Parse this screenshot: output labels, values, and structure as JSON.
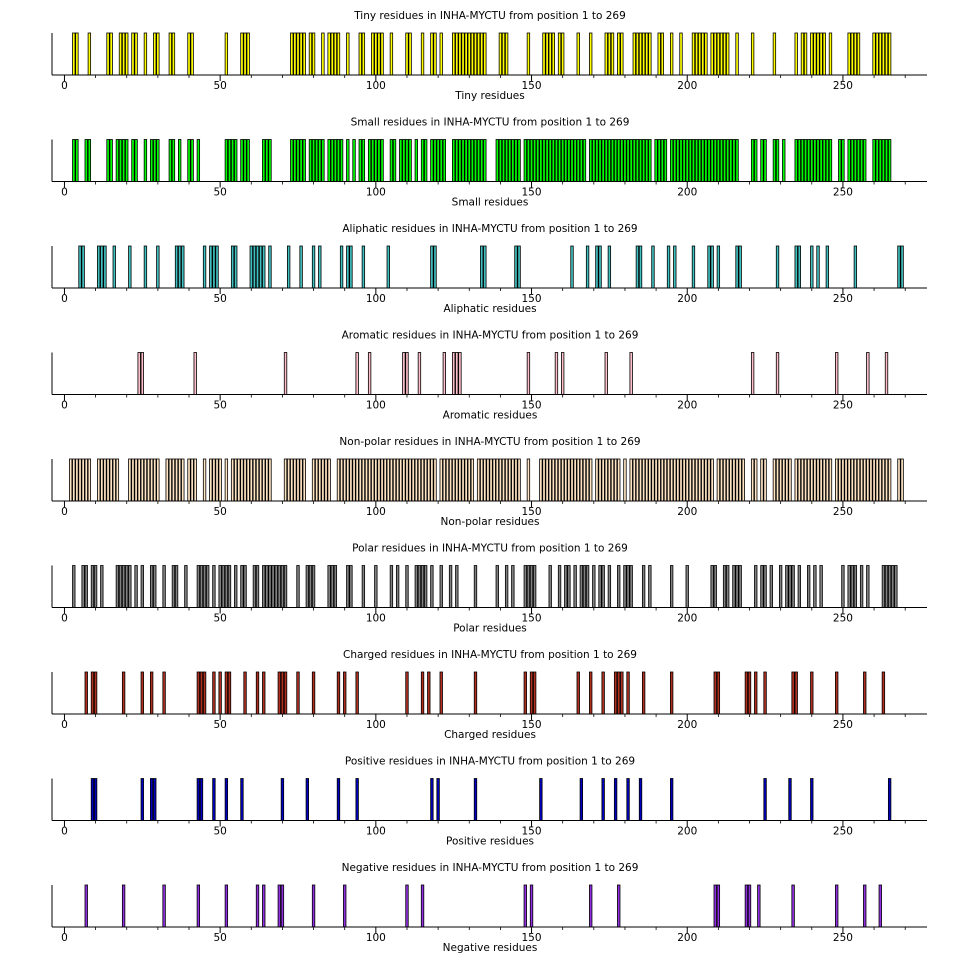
{
  "figure": {
    "background": "#ffffff",
    "axis_color": "#000000"
  },
  "chart_data": [
    {
      "type": "bar",
      "title": "Tiny residues in INHA-MYCTU from position 1 to 269",
      "xlabel": "Tiny residues",
      "color": "#ffff00",
      "xlim": [
        -4,
        277
      ],
      "xticks": [
        0,
        50,
        100,
        150,
        200,
        250
      ],
      "positions": [
        3,
        4,
        8,
        14,
        15,
        18,
        19,
        20,
        22,
        23,
        26,
        29,
        30,
        34,
        35,
        40,
        41,
        52,
        57,
        58,
        59,
        73,
        74,
        75,
        76,
        77,
        79,
        80,
        83,
        85,
        86,
        87,
        88,
        91,
        95,
        96,
        99,
        100,
        101,
        102,
        105,
        110,
        111,
        115,
        118,
        119,
        121,
        125,
        126,
        127,
        128,
        129,
        130,
        131,
        132,
        133,
        134,
        135,
        140,
        141,
        142,
        149,
        154,
        155,
        156,
        157,
        159,
        160,
        165,
        169,
        174,
        175,
        176,
        178,
        179,
        183,
        184,
        185,
        186,
        187,
        188,
        191,
        192,
        195,
        198,
        202,
        203,
        204,
        205,
        206,
        208,
        209,
        210,
        211,
        212,
        213,
        216,
        221,
        228,
        235,
        237,
        238,
        240,
        241,
        242,
        243,
        244,
        246,
        252,
        253,
        254,
        255,
        260,
        261,
        262,
        263,
        264,
        265
      ]
    },
    {
      "type": "bar",
      "title": "Small residues in INHA-MYCTU from position 1 to 269",
      "xlabel": "Small residues",
      "color": "#00ff00",
      "xlim": [
        -4,
        277
      ],
      "xticks": [
        0,
        50,
        100,
        150,
        200,
        250
      ],
      "positions": [
        3,
        4,
        7,
        8,
        14,
        15,
        17,
        18,
        19,
        20,
        22,
        23,
        26,
        28,
        29,
        30,
        34,
        35,
        37,
        40,
        41,
        43,
        52,
        53,
        54,
        55,
        57,
        58,
        59,
        64,
        65,
        66,
        73,
        74,
        75,
        76,
        77,
        79,
        80,
        81,
        82,
        83,
        85,
        86,
        87,
        88,
        89,
        91,
        93,
        95,
        96,
        98,
        99,
        100,
        101,
        102,
        105,
        106,
        108,
        109,
        110,
        111,
        113,
        115,
        116,
        118,
        119,
        120,
        121,
        122,
        125,
        126,
        127,
        128,
        129,
        130,
        131,
        132,
        133,
        134,
        135,
        139,
        140,
        141,
        142,
        143,
        144,
        145,
        146,
        148,
        149,
        150,
        151,
        152,
        153,
        154,
        155,
        156,
        157,
        158,
        159,
        160,
        161,
        162,
        163,
        164,
        165,
        166,
        167,
        169,
        170,
        171,
        172,
        173,
        174,
        175,
        176,
        177,
        178,
        179,
        180,
        181,
        182,
        183,
        184,
        185,
        186,
        187,
        188,
        190,
        191,
        192,
        193,
        195,
        196,
        197,
        198,
        199,
        200,
        201,
        202,
        203,
        204,
        205,
        206,
        207,
        208,
        209,
        210,
        211,
        212,
        213,
        214,
        215,
        216,
        221,
        222,
        224,
        225,
        228,
        229,
        231,
        235,
        236,
        237,
        238,
        239,
        240,
        241,
        242,
        243,
        244,
        245,
        246,
        249,
        250,
        252,
        253,
        254,
        255,
        256,
        257,
        260,
        261,
        262,
        263,
        264,
        265
      ]
    },
    {
      "type": "bar",
      "title": "Aliphatic residues in INHA-MYCTU from position 1 to 269",
      "xlabel": "Aliphatic residues",
      "color": "#40c0c0",
      "xlim": [
        -4,
        277
      ],
      "xticks": [
        0,
        50,
        100,
        150,
        200,
        250
      ],
      "positions": [
        5,
        6,
        11,
        12,
        13,
        16,
        21,
        26,
        30,
        36,
        37,
        38,
        45,
        47,
        48,
        49,
        54,
        55,
        60,
        61,
        62,
        63,
        64,
        66,
        72,
        76,
        80,
        82,
        89,
        91,
        92,
        96,
        104,
        118,
        119,
        134,
        135,
        145,
        146,
        163,
        168,
        171,
        172,
        175,
        184,
        185,
        189,
        194,
        196,
        202,
        207,
        208,
        210,
        216,
        217,
        229,
        235,
        236,
        240,
        242,
        245,
        254,
        268,
        269
      ]
    },
    {
      "type": "bar",
      "title": "Aromatic residues in INHA-MYCTU from position 1 to 269",
      "xlabel": "Aromatic residues",
      "color": "#ffc0cb",
      "xlim": [
        -4,
        277
      ],
      "xticks": [
        0,
        50,
        100,
        150,
        200,
        250
      ],
      "positions": [
        24,
        25,
        42,
        71,
        94,
        98,
        109,
        110,
        114,
        122,
        125,
        126,
        127,
        149,
        158,
        160,
        174,
        182,
        221,
        229,
        248,
        258,
        264
      ]
    },
    {
      "type": "bar",
      "title": "Non-polar residues in INHA-MYCTU from position 1 to 269",
      "xlabel": "Non-polar residues",
      "color": "#ffe4c4",
      "xlim": [
        -4,
        277
      ],
      "xticks": [
        0,
        50,
        100,
        150,
        200,
        250
      ],
      "positions": [
        2,
        3,
        4,
        5,
        6,
        7,
        8,
        11,
        12,
        13,
        14,
        15,
        16,
        17,
        21,
        22,
        23,
        24,
        25,
        26,
        27,
        28,
        29,
        30,
        33,
        34,
        35,
        36,
        37,
        38,
        40,
        41,
        42,
        45,
        47,
        48,
        49,
        50,
        52,
        54,
        55,
        56,
        57,
        58,
        59,
        60,
        61,
        62,
        63,
        64,
        65,
        66,
        71,
        72,
        73,
        74,
        75,
        76,
        77,
        80,
        81,
        82,
        83,
        84,
        85,
        88,
        89,
        90,
        91,
        92,
        93,
        94,
        95,
        96,
        97,
        98,
        99,
        100,
        101,
        102,
        103,
        104,
        105,
        106,
        107,
        108,
        109,
        110,
        111,
        112,
        113,
        114,
        115,
        116,
        117,
        118,
        119,
        121,
        122,
        123,
        124,
        125,
        126,
        127,
        128,
        129,
        130,
        131,
        133,
        134,
        135,
        136,
        137,
        138,
        139,
        140,
        141,
        142,
        143,
        144,
        145,
        146,
        149,
        153,
        154,
        155,
        156,
        157,
        158,
        159,
        160,
        161,
        162,
        163,
        164,
        165,
        166,
        167,
        168,
        169,
        171,
        172,
        173,
        174,
        175,
        176,
        177,
        178,
        180,
        182,
        183,
        184,
        185,
        186,
        187,
        188,
        189,
        190,
        191,
        192,
        193,
        194,
        195,
        196,
        197,
        198,
        199,
        200,
        201,
        202,
        203,
        204,
        205,
        206,
        207,
        208,
        210,
        211,
        212,
        213,
        214,
        215,
        216,
        217,
        218,
        221,
        222,
        224,
        225,
        228,
        229,
        230,
        231,
        232,
        233,
        235,
        236,
        237,
        238,
        239,
        240,
        241,
        242,
        243,
        244,
        245,
        246,
        248,
        249,
        250,
        251,
        252,
        253,
        254,
        255,
        256,
        257,
        258,
        259,
        260,
        261,
        262,
        263,
        264,
        265,
        268,
        269
      ]
    },
    {
      "type": "bar",
      "title": "Polar residues in INHA-MYCTU from position 1 to 269",
      "xlabel": "Polar residues",
      "color": "#808080",
      "xlim": [
        -4,
        277
      ],
      "xticks": [
        0,
        50,
        100,
        150,
        200,
        250
      ],
      "positions": [
        3,
        6,
        7,
        9,
        10,
        12,
        17,
        18,
        19,
        20,
        21,
        23,
        25,
        28,
        29,
        32,
        35,
        36,
        39,
        43,
        44,
        45,
        46,
        48,
        50,
        51,
        52,
        53,
        55,
        57,
        58,
        61,
        62,
        64,
        65,
        66,
        67,
        68,
        69,
        70,
        71,
        75,
        78,
        79,
        80,
        85,
        86,
        87,
        91,
        92,
        96,
        100,
        105,
        107,
        110,
        113,
        114,
        115,
        116,
        118,
        121,
        124,
        126,
        132,
        139,
        142,
        144,
        148,
        149,
        150,
        151,
        156,
        159,
        161,
        162,
        164,
        166,
        167,
        168,
        170,
        172,
        173,
        175,
        178,
        180,
        181,
        182,
        186,
        188,
        195,
        200,
        208,
        209,
        212,
        213,
        215,
        216,
        217,
        222,
        224,
        225,
        227,
        230,
        232,
        233,
        234,
        236,
        239,
        241,
        243,
        250,
        252,
        253,
        254,
        256,
        258,
        263,
        264,
        265,
        266,
        267
      ]
    },
    {
      "type": "bar",
      "title": "Charged residues in INHA-MYCTU from position 1 to 269",
      "xlabel": "Charged residues",
      "color": "#b03020",
      "xlim": [
        -4,
        277
      ],
      "xticks": [
        0,
        50,
        100,
        150,
        200,
        250
      ],
      "positions": [
        7,
        9,
        10,
        19,
        25,
        28,
        32,
        43,
        44,
        45,
        48,
        50,
        52,
        53,
        58,
        62,
        64,
        69,
        70,
        71,
        75,
        80,
        88,
        90,
        94,
        110,
        115,
        117,
        121,
        132,
        148,
        150,
        151,
        165,
        169,
        173,
        177,
        178,
        179,
        181,
        186,
        195,
        209,
        210,
        219,
        220,
        222,
        225,
        234,
        235,
        240,
        248,
        257,
        263
      ]
    },
    {
      "type": "bar",
      "title": "Positive residues in INHA-MYCTU from position 1 to 269",
      "xlabel": "Positive residues",
      "color": "#0000c0",
      "xlim": [
        -4,
        277
      ],
      "xticks": [
        0,
        50,
        100,
        150,
        200,
        250
      ],
      "positions": [
        9,
        10,
        25,
        28,
        29,
        43,
        44,
        48,
        52,
        57,
        70,
        78,
        88,
        94,
        118,
        120,
        132,
        153,
        166,
        173,
        177,
        181,
        185,
        195,
        225,
        233,
        240,
        265
      ]
    },
    {
      "type": "bar",
      "title": "Negative residues in INHA-MYCTU from position 1 to 269",
      "xlabel": "Negative residues",
      "color": "#9030e0",
      "xlim": [
        -4,
        277
      ],
      "xticks": [
        0,
        50,
        100,
        150,
        200,
        250
      ],
      "positions": [
        7,
        19,
        32,
        43,
        52,
        62,
        64,
        69,
        70,
        80,
        90,
        110,
        115,
        148,
        150,
        169,
        178,
        209,
        210,
        219,
        220,
        223,
        234,
        248,
        257,
        262
      ]
    }
  ]
}
